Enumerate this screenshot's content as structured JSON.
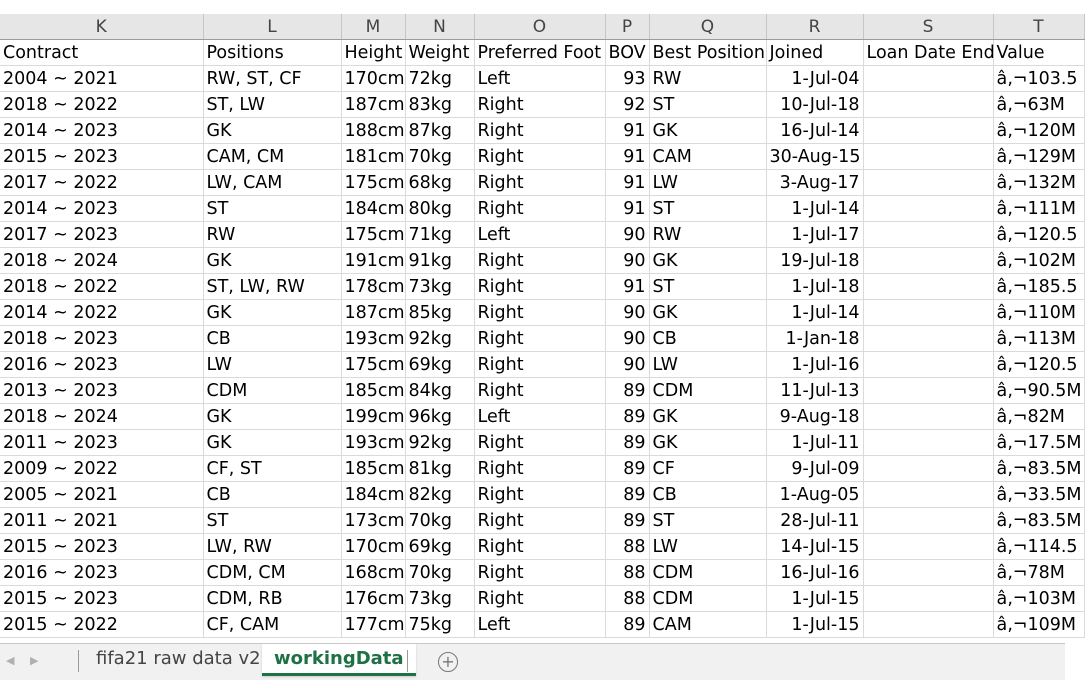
{
  "columns": [
    "K",
    "L",
    "M",
    "N",
    "O",
    "P",
    "Q",
    "R",
    "S",
    "T"
  ],
  "headers": [
    "Contract",
    "Positions",
    "Height",
    "Weight",
    "Preferred Foot",
    "BOV",
    "Best Position",
    "Joined",
    "Loan Date End",
    "Value"
  ],
  "rows": [
    [
      "2004 ~ 2021",
      "RW, ST, CF",
      "170cm",
      "72kg",
      "Left",
      "93",
      "RW",
      "1-Jul-04",
      "",
      "â‚¬103.5"
    ],
    [
      "2018 ~ 2022",
      "ST, LW",
      "187cm",
      "83kg",
      "Right",
      "92",
      "ST",
      "10-Jul-18",
      "",
      "â‚¬63M"
    ],
    [
      "2014 ~ 2023",
      "GK",
      "188cm",
      "87kg",
      "Right",
      "91",
      "GK",
      "16-Jul-14",
      "",
      "â‚¬120M"
    ],
    [
      "2015 ~ 2023",
      "CAM, CM",
      "181cm",
      "70kg",
      "Right",
      "91",
      "CAM",
      "30-Aug-15",
      "",
      "â‚¬129M"
    ],
    [
      "2017 ~ 2022",
      "LW, CAM",
      "175cm",
      "68kg",
      "Right",
      "91",
      "LW",
      "3-Aug-17",
      "",
      "â‚¬132M"
    ],
    [
      "2014 ~ 2023",
      "ST",
      "184cm",
      "80kg",
      "Right",
      "91",
      "ST",
      "1-Jul-14",
      "",
      "â‚¬111M"
    ],
    [
      "2017 ~ 2023",
      "RW",
      "175cm",
      "71kg",
      "Left",
      "90",
      "RW",
      "1-Jul-17",
      "",
      "â‚¬120.5"
    ],
    [
      "2018 ~ 2024",
      "GK",
      "191cm",
      "91kg",
      "Right",
      "90",
      "GK",
      "19-Jul-18",
      "",
      "â‚¬102M"
    ],
    [
      "2018 ~ 2022",
      "ST, LW, RW",
      "178cm",
      "73kg",
      "Right",
      "91",
      "ST",
      "1-Jul-18",
      "",
      "â‚¬185.5"
    ],
    [
      "2014 ~ 2022",
      "GK",
      "187cm",
      "85kg",
      "Right",
      "90",
      "GK",
      "1-Jul-14",
      "",
      "â‚¬110M"
    ],
    [
      "2018 ~ 2023",
      "CB",
      "193cm",
      "92kg",
      "Right",
      "90",
      "CB",
      "1-Jan-18",
      "",
      "â‚¬113M"
    ],
    [
      "2016 ~ 2023",
      "LW",
      "175cm",
      "69kg",
      "Right",
      "90",
      "LW",
      "1-Jul-16",
      "",
      "â‚¬120.5"
    ],
    [
      "2013 ~ 2023",
      "CDM",
      "185cm",
      "84kg",
      "Right",
      "89",
      "CDM",
      "11-Jul-13",
      "",
      "â‚¬90.5M"
    ],
    [
      "2018 ~ 2024",
      "GK",
      "199cm",
      "96kg",
      "Left",
      "89",
      "GK",
      "9-Aug-18",
      "",
      "â‚¬82M"
    ],
    [
      "2011 ~ 2023",
      "GK",
      "193cm",
      "92kg",
      "Right",
      "89",
      "GK",
      "1-Jul-11",
      "",
      "â‚¬17.5M"
    ],
    [
      "2009 ~ 2022",
      "CF, ST",
      "185cm",
      "81kg",
      "Right",
      "89",
      "CF",
      "9-Jul-09",
      "",
      "â‚¬83.5M"
    ],
    [
      "2005 ~ 2021",
      "CB",
      "184cm",
      "82kg",
      "Right",
      "89",
      "CB",
      "1-Aug-05",
      "",
      "â‚¬33.5M"
    ],
    [
      "2011 ~ 2021",
      "ST",
      "173cm",
      "70kg",
      "Right",
      "89",
      "ST",
      "28-Jul-11",
      "",
      "â‚¬83.5M"
    ],
    [
      "2015 ~ 2023",
      "LW, RW",
      "170cm",
      "69kg",
      "Right",
      "88",
      "LW",
      "14-Jul-15",
      "",
      "â‚¬114.5"
    ],
    [
      "2016 ~ 2023",
      "CDM, CM",
      "168cm",
      "70kg",
      "Right",
      "88",
      "CDM",
      "16-Jul-16",
      "",
      "â‚¬78M"
    ],
    [
      "2015 ~ 2023",
      "CDM, RB",
      "176cm",
      "73kg",
      "Right",
      "88",
      "CDM",
      "1-Jul-15",
      "",
      "â‚¬103M"
    ],
    [
      "2015 ~ 2022",
      "CF, CAM",
      "177cm",
      "75kg",
      "Left",
      "89",
      "CAM",
      "1-Jul-15",
      "",
      "â‚¬109M"
    ]
  ],
  "numeric_columns": [
    5,
    7
  ],
  "tabs": {
    "raw": "fifa21 raw data v2",
    "working": "workingData",
    "active": "workingData"
  },
  "colors": {
    "active_tab": "#1e7145",
    "header_bg": "#e6e6e6",
    "gridline": "#dadada"
  },
  "icons": [
    "chevron-left-icon",
    "chevron-right-icon",
    "add-sheet-icon"
  ]
}
